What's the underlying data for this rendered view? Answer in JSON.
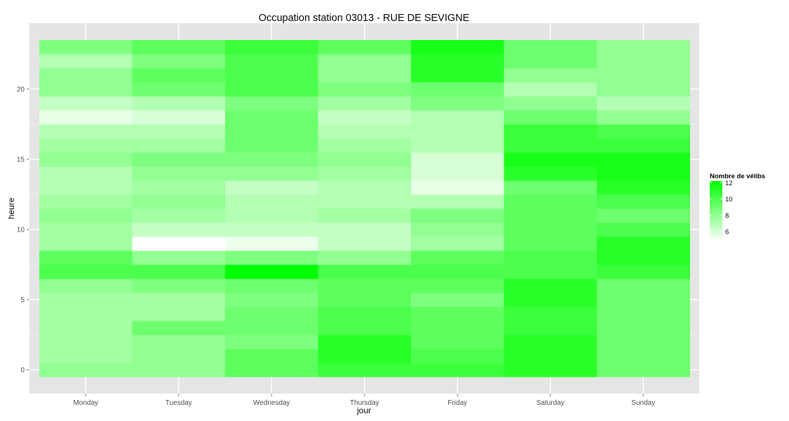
{
  "chart_data": {
    "type": "heatmap",
    "title": "Occupation station 03013 - RUE DE SEVIGNE",
    "xlabel": "jour",
    "ylabel": "heure",
    "x": [
      "Monday",
      "Tuesday",
      "Wednesday",
      "Thursday",
      "Friday",
      "Saturday",
      "Sunday"
    ],
    "y": [
      0,
      1,
      2,
      3,
      4,
      5,
      6,
      7,
      8,
      9,
      10,
      11,
      12,
      13,
      14,
      15,
      16,
      17,
      18,
      19,
      20,
      21,
      22,
      23
    ],
    "y_ticks": [
      0,
      5,
      10,
      15,
      20
    ],
    "ylim": [
      -0.5,
      23.5
    ],
    "grid": true,
    "legend": {
      "title": "Nombre de vélibs",
      "position": "right",
      "ticks": [
        6,
        8,
        10,
        12
      ],
      "range": [
        4.8,
        12.2
      ],
      "low_color": "#ffffff",
      "high_color": "#00ff00"
    },
    "values": [
      [
        8.0,
        8.0,
        9.5,
        10.5,
        10.5,
        11.0,
        9.0
      ],
      [
        7.5,
        8.0,
        9.5,
        11.0,
        10.0,
        11.0,
        9.0
      ],
      [
        7.5,
        8.0,
        8.5,
        11.0,
        9.5,
        11.0,
        9.0
      ],
      [
        7.5,
        9.0,
        9.0,
        10.0,
        9.5,
        10.5,
        9.0
      ],
      [
        7.5,
        7.5,
        9.0,
        10.0,
        9.5,
        10.5,
        9.0
      ],
      [
        7.5,
        7.5,
        8.5,
        9.5,
        8.5,
        11.0,
        9.0
      ],
      [
        8.0,
        8.5,
        9.0,
        9.5,
        9.5,
        11.0,
        9.0
      ],
      [
        10.0,
        10.0,
        12.2,
        10.0,
        10.0,
        10.0,
        10.5
      ],
      [
        9.5,
        8.0,
        8.5,
        8.0,
        9.5,
        10.0,
        11.0
      ],
      [
        7.5,
        4.8,
        5.3,
        6.5,
        7.5,
        9.5,
        11.0
      ],
      [
        7.5,
        6.5,
        6.5,
        6.5,
        8.0,
        9.5,
        10.0
      ],
      [
        8.0,
        7.5,
        7.0,
        7.5,
        8.5,
        9.5,
        9.0
      ],
      [
        7.5,
        8.0,
        7.0,
        7.0,
        7.0,
        9.5,
        10.0
      ],
      [
        7.0,
        7.5,
        6.5,
        7.0,
        5.5,
        9.0,
        11.0
      ],
      [
        7.0,
        8.0,
        8.0,
        7.5,
        6.0,
        11.0,
        11.5
      ],
      [
        8.0,
        8.5,
        8.5,
        8.0,
        6.0,
        11.5,
        11.5
      ],
      [
        7.5,
        7.5,
        9.0,
        7.5,
        7.0,
        10.5,
        10.5
      ],
      [
        7.0,
        7.0,
        9.0,
        7.0,
        7.0,
        10.5,
        10.0
      ],
      [
        5.5,
        6.0,
        9.0,
        6.5,
        7.0,
        9.0,
        8.0
      ],
      [
        6.5,
        7.0,
        8.5,
        7.5,
        8.5,
        8.0,
        7.0
      ],
      [
        8.0,
        9.0,
        10.0,
        8.5,
        9.0,
        7.0,
        8.0
      ],
      [
        8.0,
        9.5,
        10.0,
        8.0,
        11.0,
        8.0,
        8.0
      ],
      [
        7.0,
        8.5,
        10.0,
        8.0,
        11.0,
        9.0,
        8.0
      ],
      [
        8.5,
        9.5,
        10.5,
        9.5,
        11.5,
        9.0,
        8.0
      ]
    ]
  }
}
